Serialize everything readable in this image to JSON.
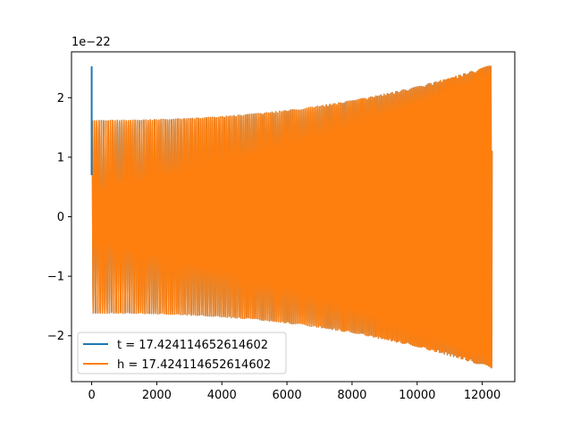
{
  "colors": {
    "t_series": "#1f77b4",
    "h_series": "#ff7f0e",
    "axes": "#000000",
    "background": "#ffffff",
    "legend_border": "#cccccc"
  },
  "chart_data": {
    "type": "line",
    "title": "",
    "xlabel": "",
    "ylabel": "",
    "xlim": [
      -620,
      13000
    ],
    "ylim": [
      -2.77,
      2.77
    ],
    "y_offset_label": "1e−22",
    "y_scale_factor": 1e-22,
    "grid": false,
    "legend_position": "lower left",
    "x_ticks": [
      {
        "value": 0,
        "label": "0"
      },
      {
        "value": 2000,
        "label": "2000"
      },
      {
        "value": 4000,
        "label": "4000"
      },
      {
        "value": 6000,
        "label": "6000"
      },
      {
        "value": 8000,
        "label": "8000"
      },
      {
        "value": 10000,
        "label": "10000"
      },
      {
        "value": 12000,
        "label": "12000"
      }
    ],
    "y_ticks": [
      {
        "value": -2,
        "label": "−2"
      },
      {
        "value": -1,
        "label": "−1"
      },
      {
        "value": 0,
        "label": "0"
      },
      {
        "value": 1,
        "label": "1"
      },
      {
        "value": 2,
        "label": "2"
      }
    ],
    "series": [
      {
        "name": "t = 17.424114652614602",
        "color": "#1f77b4",
        "description_values": {
          "x_start": 0,
          "x_end": 12300,
          "initial_spike_peak": 2.52,
          "initial_value": 0.7,
          "amplitude_start": 1.62,
          "amplitude_end": 2.55,
          "cycles": 220
        }
      },
      {
        "name": "h = 17.424114652614602",
        "color": "#ff7f0e",
        "description_values": {
          "x_start": 0,
          "x_end": 12300,
          "amplitude_start": 1.62,
          "amplitude_end": 2.55,
          "cycles": 220
        }
      }
    ]
  }
}
